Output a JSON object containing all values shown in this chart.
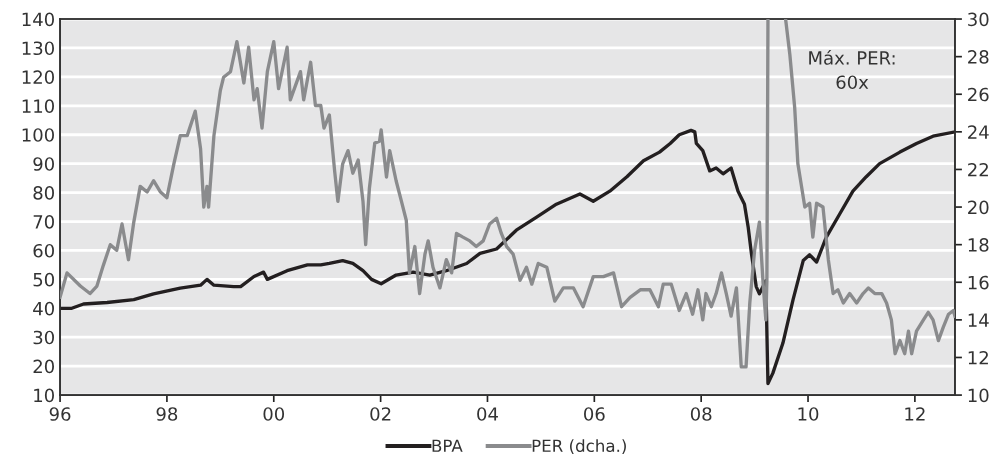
{
  "chart_data": {
    "type": "line",
    "xlim": [
      1996,
      2012.75
    ],
    "xticks": [
      {
        "value": 1996,
        "label": "96"
      },
      {
        "value": 1998,
        "label": "98"
      },
      {
        "value": 2000,
        "label": "00"
      },
      {
        "value": 2002,
        "label": "02"
      },
      {
        "value": 2004,
        "label": "04"
      },
      {
        "value": 2006,
        "label": "06"
      },
      {
        "value": 2008,
        "label": "08"
      },
      {
        "value": 2010,
        "label": "10"
      },
      {
        "value": 2012,
        "label": "12"
      }
    ],
    "ylim": [
      10,
      140
    ],
    "yticks": [
      10,
      20,
      30,
      40,
      50,
      60,
      70,
      80,
      90,
      100,
      110,
      120,
      130,
      140
    ],
    "y2lim": [
      10,
      30
    ],
    "y2ticks": [
      10,
      12,
      14,
      16,
      18,
      20,
      22,
      24,
      26,
      28,
      30
    ],
    "grid": "y",
    "legend": "bottom",
    "line_style": "solid",
    "marker": "none",
    "annotations": [
      "Máx. PER:\n60x"
    ],
    "series": [
      {
        "name": "BPA",
        "color": "#231f20",
        "x": [
          1996.0,
          1996.22,
          1996.44,
          1996.88,
          1997.38,
          1997.75,
          1998.25,
          1998.63,
          1998.75,
          1998.88,
          1999.25,
          1999.38,
          1999.63,
          1999.81,
          1999.88,
          2000.25,
          2000.63,
          2000.88,
          2001.04,
          2001.29,
          2001.48,
          2001.67,
          2001.83,
          2002.01,
          2002.29,
          2002.61,
          2002.92,
          2003.23,
          2003.61,
          2003.86,
          2004.17,
          2004.54,
          2004.92,
          2005.29,
          2005.73,
          2005.98,
          2006.29,
          2006.61,
          2006.92,
          2007.22,
          2007.42,
          2007.59,
          2007.81,
          2007.88,
          2007.91,
          2008.03,
          2008.16,
          2008.28,
          2008.41,
          2008.56,
          2008.69,
          2008.81,
          2008.88,
          2008.94,
          2009.03,
          2009.09,
          2009.21,
          2009.25,
          2009.34,
          2009.53,
          2009.72,
          2009.91,
          2010.03,
          2010.16,
          2010.34,
          2010.59,
          2010.84,
          2011.09,
          2011.34,
          2011.72,
          2012.03,
          2012.34,
          2012.75
        ],
        "values": [
          40,
          40,
          41.5,
          42,
          43,
          45,
          47,
          48,
          50,
          48,
          47.5,
          47.5,
          51,
          52.5,
          50,
          53,
          55,
          55,
          55.5,
          56.5,
          55.5,
          53,
          50,
          48.5,
          51.5,
          52.5,
          51.5,
          53,
          55.5,
          59,
          60.5,
          67,
          71.5,
          76,
          79.5,
          77,
          80.5,
          85.5,
          91,
          94,
          97,
          100,
          101.5,
          101,
          97,
          94.5,
          87.5,
          88.5,
          86.5,
          88.5,
          80.5,
          76,
          68,
          59,
          47.5,
          45,
          49.5,
          14,
          17.5,
          28,
          43,
          56.5,
          58.5,
          56,
          64.5,
          72.5,
          80.5,
          85.5,
          90,
          94,
          97,
          99.5,
          101
        ]
      },
      {
        "name": "PER (dcha.)",
        "color": "#8a8b8d",
        "axis": "y2",
        "x": [
          1996.0,
          1996.13,
          1996.38,
          1996.56,
          1996.69,
          1996.81,
          1996.94,
          1997.06,
          1997.16,
          1997.28,
          1997.38,
          1997.5,
          1997.63,
          1997.75,
          1997.88,
          1998.0,
          1998.13,
          1998.25,
          1998.38,
          1998.53,
          1998.63,
          1998.69,
          1998.75,
          1998.78,
          1998.88,
          1999.0,
          1999.06,
          1999.19,
          1999.31,
          1999.44,
          1999.53,
          1999.63,
          1999.69,
          1999.78,
          1999.88,
          2000.0,
          2000.09,
          2000.25,
          2000.31,
          2000.5,
          2000.56,
          2000.69,
          2000.78,
          2000.88,
          2000.94,
          2001.04,
          2001.14,
          2001.2,
          2001.29,
          2001.39,
          2001.48,
          2001.58,
          2001.67,
          2001.72,
          2001.79,
          2001.89,
          2001.98,
          2002.01,
          2002.11,
          2002.17,
          2002.29,
          2002.39,
          2002.48,
          2002.54,
          2002.64,
          2002.73,
          2002.83,
          2002.89,
          2002.98,
          2003.11,
          2003.23,
          2003.33,
          2003.42,
          2003.54,
          2003.67,
          2003.79,
          2003.92,
          2004.04,
          2004.17,
          2004.26,
          2004.36,
          2004.48,
          2004.61,
          2004.73,
          2004.83,
          2004.95,
          2005.11,
          2005.26,
          2005.42,
          2005.61,
          2005.79,
          2005.98,
          2006.17,
          2006.36,
          2006.51,
          2006.67,
          2006.86,
          2007.04,
          2007.2,
          2007.29,
          2007.44,
          2007.59,
          2007.72,
          2007.84,
          2007.94,
          2008.03,
          2008.09,
          2008.19,
          2008.28,
          2008.38,
          2008.47,
          2008.56,
          2008.66,
          2008.75,
          2008.84,
          2008.91,
          2009.0,
          2009.09,
          2009.16,
          2009.21,
          2009.23,
          2009.25,
          2009.4,
          2009.58,
          2009.66,
          2009.75,
          2009.81,
          2009.94,
          2010.03,
          2010.09,
          2010.16,
          2010.28,
          2010.38,
          2010.47,
          2010.56,
          2010.66,
          2010.78,
          2010.91,
          2011.03,
          2011.13,
          2011.25,
          2011.38,
          2011.47,
          2011.56,
          2011.63,
          2011.72,
          2011.81,
          2011.88,
          2011.94,
          2012.03,
          2012.16,
          2012.25,
          2012.34,
          2012.44,
          2012.53,
          2012.63,
          2012.72,
          2012.75
        ],
        "values": [
          15.2,
          16.5,
          15.8,
          15.4,
          15.8,
          16.9,
          18.0,
          17.7,
          19.1,
          17.2,
          19.2,
          21.1,
          20.8,
          21.4,
          20.8,
          20.5,
          22.3,
          23.8,
          23.8,
          25.1,
          23.1,
          20.0,
          21.1,
          20.0,
          23.8,
          26.2,
          26.9,
          27.2,
          28.8,
          26.6,
          28.5,
          25.7,
          26.3,
          24.2,
          27.2,
          28.8,
          26.3,
          28.5,
          25.7,
          27.2,
          25.7,
          27.7,
          25.4,
          25.4,
          24.2,
          24.9,
          21.9,
          20.3,
          22.3,
          23.0,
          21.8,
          22.5,
          20.3,
          18.0,
          21.0,
          23.4,
          23.5,
          24.1,
          21.6,
          23.0,
          21.4,
          20.3,
          19.3,
          16.5,
          17.9,
          15.4,
          17.5,
          18.2,
          16.8,
          15.7,
          17.2,
          16.5,
          18.6,
          18.4,
          18.2,
          17.9,
          18.2,
          19.1,
          19.4,
          18.6,
          17.9,
          17.5,
          16.1,
          16.8,
          15.9,
          17.0,
          16.8,
          15.0,
          15.7,
          15.7,
          14.7,
          16.3,
          16.3,
          16.5,
          14.7,
          15.2,
          15.6,
          15.6,
          14.7,
          15.9,
          15.9,
          14.5,
          15.4,
          14.3,
          15.6,
          14.0,
          15.4,
          14.7,
          15.4,
          16.5,
          15.4,
          14.2,
          15.7,
          11.5,
          11.5,
          14.9,
          17.7,
          19.2,
          15.9,
          14.0,
          16.1,
          30,
          null,
          30,
          28.1,
          25.3,
          22.3,
          20.0,
          20.2,
          18.4,
          20.2,
          20.0,
          17.2,
          15.4,
          15.6,
          14.9,
          15.4,
          14.9,
          15.4,
          15.7,
          15.4,
          15.4,
          14.9,
          14.0,
          12.2,
          12.9,
          12.2,
          13.4,
          12.2,
          13.4,
          14.0,
          14.4,
          14.0,
          12.9,
          13.6,
          14.3,
          14.5,
          14.2
        ]
      }
    ]
  }
}
